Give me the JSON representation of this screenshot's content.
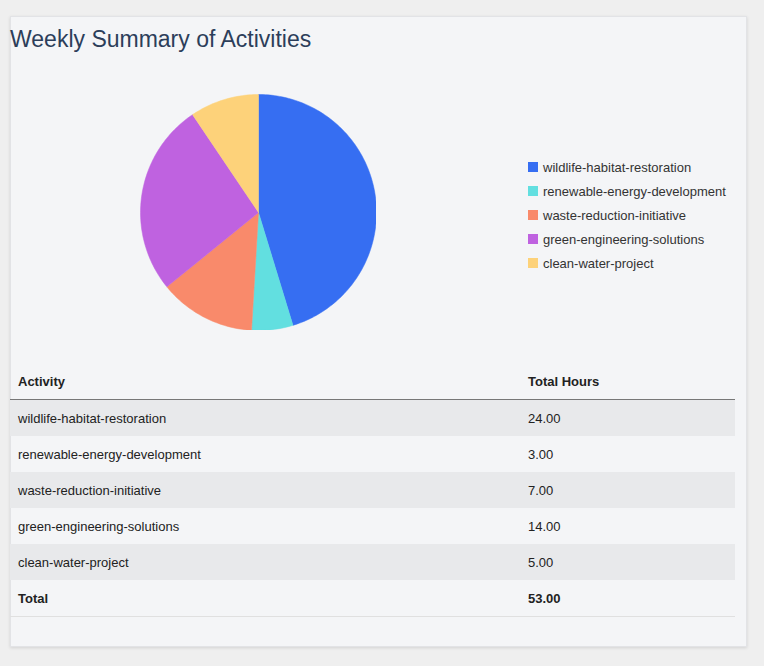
{
  "chart_data": {
    "type": "pie",
    "title": "Weekly Summary of Activities",
    "categories": [
      "wildlife-habitat-restoration",
      "renewable-energy-development",
      "waste-reduction-initiative",
      "green-engineering-solutions",
      "clean-water-project"
    ],
    "values": [
      24,
      3,
      7,
      14,
      5
    ],
    "colors": [
      "#366ef2",
      "#62dfe0",
      "#f98a6b",
      "#bf62e0",
      "#fdd27a"
    ],
    "legend": "right"
  },
  "table": {
    "header": [
      "Activity",
      "Total Hours"
    ],
    "rows": [
      [
        "wildlife-habitat-restoration",
        "24.00"
      ],
      [
        "renewable-energy-development",
        "3.00"
      ],
      [
        "waste-reduction-initiative",
        "7.00"
      ],
      [
        "green-engineering-solutions",
        "14.00"
      ],
      [
        "clean-water-project",
        "5.00"
      ]
    ],
    "total": [
      "Total",
      "53.00"
    ]
  }
}
